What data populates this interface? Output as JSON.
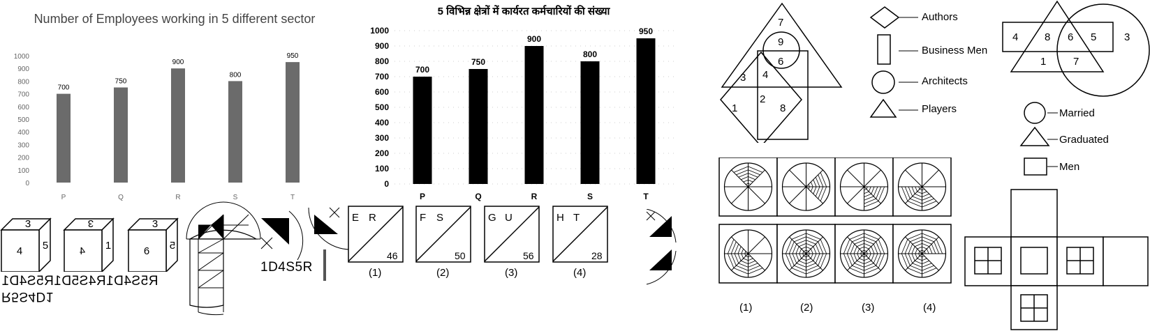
{
  "chart_data": [
    {
      "type": "bar",
      "title": "Number of Employees working in 5 different sector",
      "categories": [
        "P",
        "Q",
        "R",
        "S",
        "T"
      ],
      "values": [
        700,
        750,
        900,
        800,
        950
      ],
      "ylim": [
        0,
        1000
      ],
      "yticks": [
        0,
        100,
        200,
        300,
        400,
        500,
        600,
        700,
        800,
        900,
        1000
      ],
      "bar_color": "#6b6b6b",
      "grid": false
    },
    {
      "type": "bar",
      "title": "5 विभिन्न क्षेत्रों में कार्यरत कर्मचारियों की संख्या",
      "categories": [
        "P",
        "Q",
        "R",
        "S",
        "T"
      ],
      "values": [
        700,
        750,
        900,
        800,
        950
      ],
      "ylim": [
        0,
        1000
      ],
      "yticks": [
        0,
        100,
        200,
        300,
        400,
        500,
        600,
        700,
        800,
        900,
        1000
      ],
      "bar_color": "#000000",
      "grid": true
    }
  ],
  "dice": [
    {
      "top": "3",
      "front": "4",
      "side": "5"
    },
    {
      "top": "3",
      "front": "4",
      "side": "1"
    },
    {
      "top": "3",
      "front": "6",
      "side": "5"
    }
  ],
  "mirror_texts": {
    "row1": "R5S4D1R4S5D1R5S4D1",
    "row2": "R5S4D1",
    "row3": "1D4S5R"
  },
  "letter_boxes": [
    {
      "l1": "E",
      "l2": "R",
      "num": "46",
      "option": "(1)"
    },
    {
      "l1": "F",
      "l2": "S",
      "num": "50",
      "option": "(2)"
    },
    {
      "l1": "G",
      "l2": "U",
      "num": "56",
      "option": "(3)"
    },
    {
      "l1": "H",
      "l2": "T",
      "num": "28",
      "option": "(4)"
    }
  ],
  "venn1": {
    "regions": [
      "7",
      "9",
      "6",
      "3",
      "4",
      "2",
      "1",
      "8"
    ],
    "legend": [
      "Authors",
      "Business Men",
      "Architects",
      "Players"
    ]
  },
  "venn2": {
    "regions": [
      "4",
      "8",
      "6",
      "5",
      "3",
      "1",
      "7"
    ],
    "legend": [
      "Married",
      "Graduated",
      "Men"
    ]
  },
  "wheel_options": [
    "(1)",
    "(2)",
    "(3)",
    "(4)"
  ]
}
